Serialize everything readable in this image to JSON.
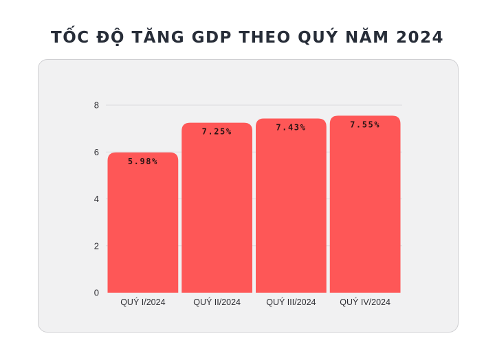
{
  "chart_data": {
    "type": "bar",
    "title": "TỐC ĐỘ TĂNG GDP THEO QUÝ NĂM 2024",
    "xlabel": "",
    "ylabel": "",
    "categories": [
      "QUÝ I/2024",
      "QUÝ II/2024",
      "QUÝ III/2024",
      "QUÝ IV/2024"
    ],
    "values": [
      5.98,
      7.25,
      7.43,
      7.55
    ],
    "data_labels": [
      "5.98%",
      "7.25%",
      "7.43%",
      "7.55%"
    ],
    "ylim": [
      0,
      8
    ],
    "yticks": [
      0,
      2,
      4,
      6,
      8
    ],
    "grid": true,
    "bar_color": "#fe5757",
    "legend": "none"
  }
}
